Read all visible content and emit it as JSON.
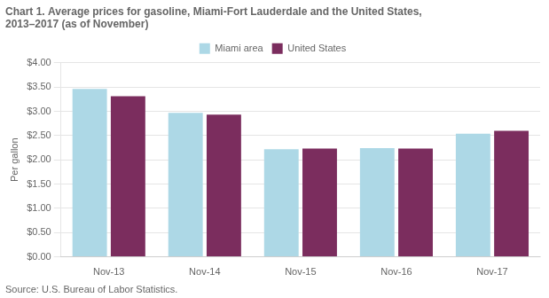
{
  "chart_data": {
    "type": "bar",
    "title": [
      "Chart 1. Average prices for gasoline, Miami-Fort Lauderdale and the United States,",
      "2013–2017 (as of November)"
    ],
    "ylabel": "Per gallon",
    "annotations": [
      "Source: U.S. Bureau of Labor Statistics."
    ],
    "categories": [
      "Nov-13",
      "Nov-14",
      "Nov-15",
      "Nov-16",
      "Nov-17"
    ],
    "series": [
      {
        "name": "Miami area",
        "color": "#add8e6",
        "values": [
          3.46,
          2.97,
          2.22,
          2.24,
          2.54
        ]
      },
      {
        "name": "United States",
        "color": "#7b2d5e",
        "values": [
          3.31,
          2.93,
          2.23,
          2.23,
          2.6
        ]
      }
    ],
    "ylim": [
      0,
      4.0
    ],
    "yticks": [
      {
        "value": 0.0,
        "label": "$0.00"
      },
      {
        "value": 0.5,
        "label": "$0.50"
      },
      {
        "value": 1.0,
        "label": "$1.00"
      },
      {
        "value": 1.5,
        "label": "$1.50"
      },
      {
        "value": 2.0,
        "label": "$2.00"
      },
      {
        "value": 2.5,
        "label": "$2.50"
      },
      {
        "value": 3.0,
        "label": "$3.00"
      },
      {
        "value": 3.5,
        "label": "$3.50"
      },
      {
        "value": 4.0,
        "label": "$4.00"
      }
    ],
    "grid": true,
    "legend": "top"
  }
}
